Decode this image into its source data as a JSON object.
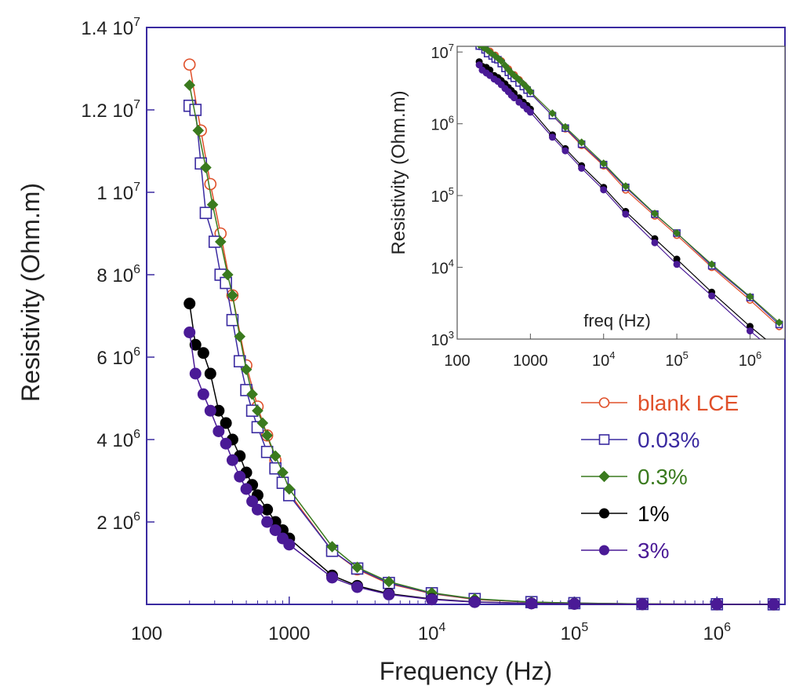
{
  "chart_data": {
    "type": "scatter",
    "main": {
      "xlabel": "Frequency (Hz)",
      "ylabel": "Resistivity (Ohm.m)",
      "xscale": "log",
      "yscale": "linear",
      "xlim": [
        100,
        3000000
      ],
      "ylim": [
        0,
        14000000
      ],
      "x_ticks": [
        {
          "value": 100,
          "base": "100",
          "exp": ""
        },
        {
          "value": 1000,
          "base": "1000",
          "exp": ""
        },
        {
          "value": 10000,
          "base": "10",
          "exp": "4"
        },
        {
          "value": 100000,
          "base": "10",
          "exp": "5"
        },
        {
          "value": 1000000,
          "base": "10",
          "exp": "6"
        }
      ],
      "y_ticks": [
        {
          "value": 2000000,
          "base": "2 10",
          "exp": "6"
        },
        {
          "value": 4000000,
          "base": "4 10",
          "exp": "6"
        },
        {
          "value": 6000000,
          "base": "6 10",
          "exp": "6"
        },
        {
          "value": 8000000,
          "base": "8 10",
          "exp": "6"
        },
        {
          "value": 10000000,
          "base": "1 10",
          "exp": "7"
        },
        {
          "value": 12000000,
          "base": "1.2 10",
          "exp": "7"
        },
        {
          "value": 14000000,
          "base": "1.4 10",
          "exp": "7"
        }
      ]
    },
    "inset": {
      "xlabel": "freq (Hz)",
      "ylabel": "Resistivity (Ohm.m)",
      "xscale": "log",
      "yscale": "log",
      "xlim": [
        100,
        3000000
      ],
      "ylim": [
        1000,
        12000000
      ],
      "x_ticks": [
        {
          "value": 100,
          "base": "100",
          "exp": ""
        },
        {
          "value": 1000,
          "base": "1000",
          "exp": ""
        },
        {
          "value": 10000,
          "base": "10",
          "exp": "4"
        },
        {
          "value": 100000,
          "base": "10",
          "exp": "5"
        },
        {
          "value": 1000000,
          "base": "10",
          "exp": "6"
        }
      ],
      "y_ticks": [
        {
          "value": 1000,
          "base": "10",
          "exp": "3"
        },
        {
          "value": 10000,
          "base": "10",
          "exp": "4"
        },
        {
          "value": 100000,
          "base": "10",
          "exp": "5"
        },
        {
          "value": 1000000,
          "base": "10",
          "exp": "6"
        },
        {
          "value": 10000000,
          "base": "10",
          "exp": "7"
        }
      ]
    },
    "legend_position": "bottom-right",
    "series": [
      {
        "name": "blank LCE",
        "color": "#e0502a",
        "marker": "circle-open",
        "x": [
          200,
          240,
          280,
          330,
          400,
          500,
          600,
          700,
          800,
          1000,
          2000,
          3000,
          5000,
          10000,
          20000,
          50000,
          100000,
          300000,
          1000000,
          2500000
        ],
        "y": [
          13100000,
          11500000,
          10200000,
          9000000,
          7500000,
          5800000,
          4800000,
          4100000,
          3500000,
          2700000,
          1300000,
          850000,
          500000,
          260000,
          120000,
          52000,
          28000,
          10000,
          3500,
          1500
        ]
      },
      {
        "name": "0.03%",
        "color": "#3a2aa0",
        "marker": "square-open",
        "x": [
          200,
          220,
          240,
          260,
          300,
          330,
          360,
          400,
          450,
          500,
          550,
          600,
          700,
          800,
          900,
          1000,
          2000,
          3000,
          5000,
          10000,
          20000,
          50000,
          100000,
          300000,
          1000000,
          2500000
        ],
        "y": [
          12100000,
          12000000,
          10700000,
          9500000,
          8800000,
          8000000,
          7800000,
          6900000,
          5900000,
          5200000,
          4700000,
          4300000,
          3700000,
          3300000,
          2950000,
          2650000,
          1300000,
          870000,
          520000,
          270000,
          130000,
          55000,
          30000,
          10500,
          3800,
          1600
        ]
      },
      {
        "name": "0.3%",
        "color": "#3a7a1e",
        "marker": "diamond-filled",
        "x": [
          200,
          230,
          260,
          290,
          330,
          370,
          400,
          450,
          500,
          550,
          600,
          650,
          700,
          800,
          900,
          1000,
          2000,
          3000,
          5000,
          10000,
          20000,
          50000,
          100000,
          300000,
          1000000,
          2500000
        ],
        "y": [
          12600000,
          11500000,
          10600000,
          9700000,
          8800000,
          8000000,
          7500000,
          6500000,
          5700000,
          5100000,
          4700000,
          4400000,
          4100000,
          3600000,
          3200000,
          2800000,
          1400000,
          900000,
          550000,
          280000,
          135000,
          56000,
          30000,
          11000,
          3900,
          1700
        ]
      },
      {
        "name": "1%",
        "color": "#000000",
        "marker": "circle-filled",
        "x": [
          200,
          220,
          250,
          280,
          320,
          360,
          400,
          450,
          500,
          550,
          600,
          700,
          800,
          900,
          1000,
          2000,
          3000,
          5000,
          10000,
          20000,
          50000,
          100000,
          300000,
          1000000,
          2500000
        ],
        "y": [
          7300000,
          6300000,
          6100000,
          5600000,
          4700000,
          4400000,
          4000000,
          3600000,
          3200000,
          2900000,
          2650000,
          2300000,
          2000000,
          1800000,
          1600000,
          700000,
          450000,
          260000,
          130000,
          60000,
          25000,
          13000,
          4500,
          1500,
          700
        ]
      },
      {
        "name": "3%",
        "color": "#4a1a96",
        "marker": "circle-filled",
        "x": [
          200,
          220,
          250,
          280,
          320,
          360,
          400,
          450,
          500,
          550,
          600,
          700,
          800,
          900,
          1000,
          2000,
          3000,
          5000,
          10000,
          20000,
          50000,
          100000,
          300000,
          1000000,
          2500000
        ],
        "y": [
          6600000,
          5600000,
          5100000,
          4700000,
          4200000,
          3900000,
          3500000,
          3100000,
          2800000,
          2500000,
          2300000,
          2000000,
          1800000,
          1600000,
          1450000,
          650000,
          420000,
          240000,
          120000,
          55000,
          22000,
          11000,
          4000,
          1300,
          600
        ]
      }
    ]
  }
}
